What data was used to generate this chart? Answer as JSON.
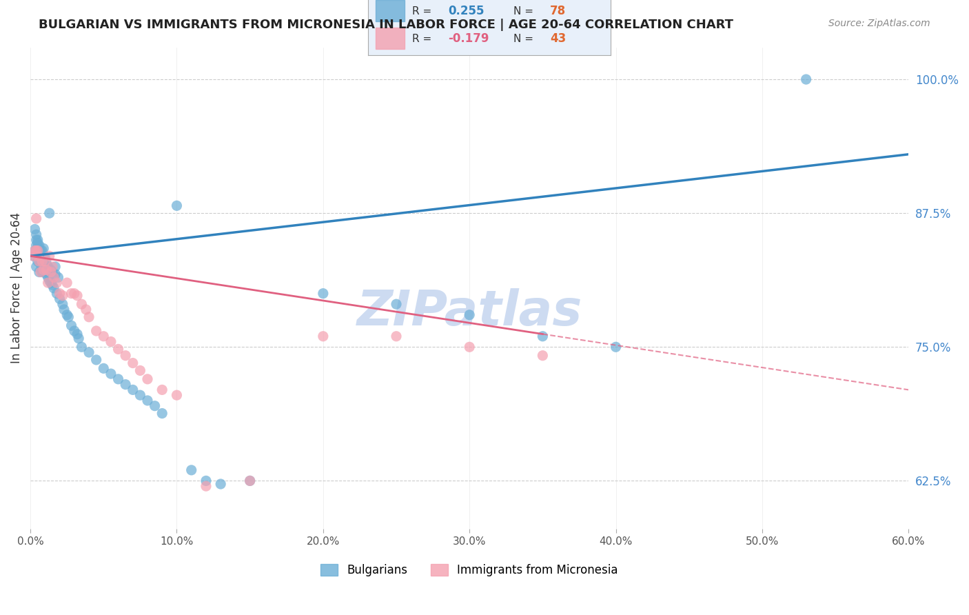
{
  "title": "BULGARIAN VS IMMIGRANTS FROM MICRONESIA IN LABOR FORCE | AGE 20-64 CORRELATION CHART",
  "source": "Source: ZipAtlas.com",
  "xlabel": "",
  "ylabel": "In Labor Force | Age 20-64",
  "xlim": [
    0.0,
    0.6
  ],
  "ylim": [
    0.58,
    1.03
  ],
  "yticks": [
    0.625,
    0.75,
    0.875,
    1.0
  ],
  "ytick_labels": [
    "62.5%",
    "75.0%",
    "87.5%",
    "100.0%"
  ],
  "xticks": [
    0.0,
    0.1,
    0.2,
    0.3,
    0.4,
    0.5,
    0.6
  ],
  "xtick_labels": [
    "0.0%",
    "10.0%",
    "20.0%",
    "30.0%",
    "40.0%",
    "50.0%",
    "60.0%"
  ],
  "blue_R": 0.255,
  "blue_N": 78,
  "pink_R": -0.179,
  "pink_N": 43,
  "blue_color": "#6baed6",
  "pink_color": "#f4a0b0",
  "blue_line_color": "#3182bd",
  "pink_line_color": "#e06080",
  "background_color": "#ffffff",
  "grid_color": "#cccccc",
  "watermark": "ZIPatlas",
  "watermark_color": "#c8d8f0",
  "legend_box_color": "#e8f0fa",
  "blue_x": [
    0.002,
    0.003,
    0.003,
    0.004,
    0.004,
    0.004,
    0.004,
    0.005,
    0.005,
    0.005,
    0.005,
    0.005,
    0.005,
    0.006,
    0.006,
    0.006,
    0.006,
    0.007,
    0.007,
    0.007,
    0.008,
    0.008,
    0.008,
    0.008,
    0.009,
    0.009,
    0.009,
    0.009,
    0.01,
    0.01,
    0.01,
    0.011,
    0.011,
    0.012,
    0.012,
    0.013,
    0.013,
    0.014,
    0.014,
    0.015,
    0.015,
    0.016,
    0.017,
    0.017,
    0.018,
    0.019,
    0.02,
    0.022,
    0.023,
    0.025,
    0.026,
    0.028,
    0.03,
    0.032,
    0.033,
    0.035,
    0.04,
    0.045,
    0.05,
    0.055,
    0.06,
    0.065,
    0.07,
    0.075,
    0.08,
    0.085,
    0.09,
    0.1,
    0.11,
    0.12,
    0.13,
    0.15,
    0.2,
    0.25,
    0.3,
    0.35,
    0.4,
    0.53
  ],
  "blue_y": [
    0.835,
    0.84,
    0.86,
    0.825,
    0.845,
    0.85,
    0.855,
    0.83,
    0.835,
    0.84,
    0.843,
    0.847,
    0.85,
    0.82,
    0.83,
    0.838,
    0.845,
    0.827,
    0.833,
    0.84,
    0.82,
    0.825,
    0.832,
    0.84,
    0.822,
    0.828,
    0.835,
    0.842,
    0.82,
    0.827,
    0.834,
    0.818,
    0.828,
    0.815,
    0.825,
    0.812,
    0.875,
    0.81,
    0.822,
    0.808,
    0.82,
    0.805,
    0.818,
    0.825,
    0.8,
    0.815,
    0.795,
    0.79,
    0.785,
    0.78,
    0.778,
    0.77,
    0.765,
    0.762,
    0.758,
    0.75,
    0.745,
    0.738,
    0.73,
    0.725,
    0.72,
    0.715,
    0.71,
    0.705,
    0.7,
    0.695,
    0.688,
    0.882,
    0.635,
    0.625,
    0.622,
    0.625,
    0.8,
    0.79,
    0.78,
    0.76,
    0.75,
    1.0
  ],
  "pink_x": [
    0.002,
    0.003,
    0.004,
    0.004,
    0.005,
    0.005,
    0.006,
    0.007,
    0.008,
    0.009,
    0.01,
    0.011,
    0.012,
    0.013,
    0.014,
    0.015,
    0.016,
    0.018,
    0.02,
    0.022,
    0.025,
    0.028,
    0.03,
    0.032,
    0.035,
    0.038,
    0.04,
    0.045,
    0.05,
    0.055,
    0.06,
    0.065,
    0.07,
    0.075,
    0.08,
    0.09,
    0.1,
    0.12,
    0.15,
    0.2,
    0.25,
    0.3,
    0.35
  ],
  "pink_y": [
    0.835,
    0.84,
    0.87,
    0.84,
    0.835,
    0.84,
    0.83,
    0.82,
    0.83,
    0.822,
    0.83,
    0.822,
    0.81,
    0.835,
    0.82,
    0.825,
    0.815,
    0.81,
    0.8,
    0.798,
    0.81,
    0.8,
    0.8,
    0.798,
    0.79,
    0.785,
    0.778,
    0.765,
    0.76,
    0.755,
    0.748,
    0.742,
    0.735,
    0.728,
    0.72,
    0.71,
    0.705,
    0.62,
    0.625,
    0.76,
    0.76,
    0.75,
    0.742
  ]
}
